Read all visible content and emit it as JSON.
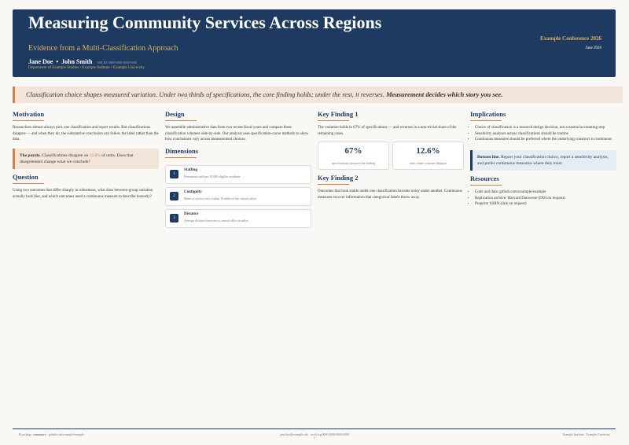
{
  "header": {
    "title": "Measuring Community Services Across Regions",
    "subtitle": "Evidence from a Multi-Classification Approach",
    "authors": [
      "Jane Doe",
      "John Smith"
    ],
    "orcid": "ORCID: 0000-0000-0000-0000",
    "affiliation": "Department of Example Studies • Example Institute • Example University",
    "conference": "Example Conference 2026",
    "date": "June 2026"
  },
  "banner": {
    "text": "Classification choice shapes measured variation. Under two thirds of specifications, the core finding holds; under the rest, it reverses.",
    "emphasis": "Measurement decides which story you see."
  },
  "motivation": {
    "heading": "Motivation",
    "text": "Researchers almost always pick one classification and report results. But classifications disagree — and when they do, the substantive conclusion can follow the label rather than the data.",
    "puzzle_label": "The puzzle.",
    "puzzle_text_1": "Classifications disagree on",
    "puzzle_highlight": "12.6%",
    "puzzle_text_2": "of units. Does that disagreement change what we conclude?"
  },
  "question": {
    "heading": "Question",
    "text": "Using two outcomes that differ sharply in robustness, what does between-group variation actually look like, and which outcomes need a continuous measure to describe honestly?"
  },
  "design": {
    "heading": "Design",
    "text": "We assemble administrative data from two recent fiscal years and compare three classification schemes side-by-side. Our analysis uses specification-curve methods to show how conclusions vary across measurement choices."
  },
  "dimensions": {
    "heading": "Dimensions",
    "items": [
      {
        "number": "1",
        "name": "Staffing",
        "description": "Permanent staff per 10 000 eligible residents"
      },
      {
        "number": "2",
        "name": "Contiguity",
        "description": "Share of service sites within 10 miles of the central office"
      },
      {
        "number": "3",
        "name": "Distance",
        "description": "Average distance between to central office in miles"
      }
    ]
  },
  "finding1": {
    "heading": "Key Finding 1",
    "text": "The variation holds in 67% of specifications — and reverses in a non-trivial share of the remaining cases.",
    "stats": [
      {
        "value": "67%",
        "label": "specifications preserve the finding"
      },
      {
        "value": "12.6%",
        "label": "units where schemes disagree"
      }
    ]
  },
  "finding2": {
    "heading": "Key Finding 2",
    "text": "Outcomes that look stable under one classification become noisy under another. Continuous measures recover information that categorical labels throw away."
  },
  "implications": {
    "heading": "Implications",
    "bullets": [
      "Choice of classification is a research design decision, not a neutral accounting step",
      "Sensitivity analyses across classifications should be routine",
      "Continuous measures should be preferred where the underlying construct is continuous"
    ],
    "bottom_label": "Bottom line.",
    "bottom_text": "Report your classification choice, report a sensitivity analysis, and prefer continuous measures where they exist."
  },
  "resources": {
    "heading": "Resources",
    "bullets": [
      "Code and data: github.com/example/example",
      "Replication archive: Harvard Dataverse (DOI on request)",
      "Preprint: SSRN (link on request)"
    ]
  },
  "footer": {
    "left_prefix": "R package:",
    "left_package": "commserv",
    "left_link": "· github.com/example/example",
    "center": "jane.doe@example.edu · orcid.org/0000-0000-0000-0000",
    "page": "1",
    "right": "Example Institute · Example University"
  }
}
